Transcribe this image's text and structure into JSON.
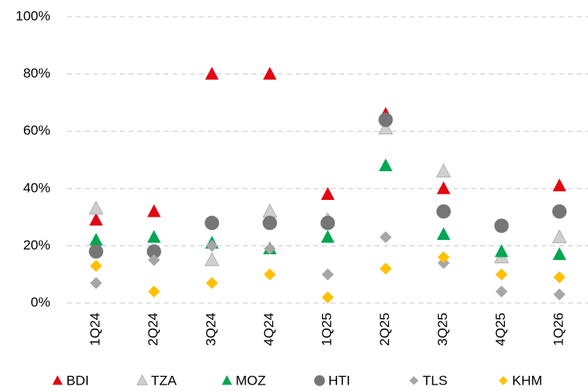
{
  "chart_data": {
    "type": "scatter",
    "categories": [
      "1Q24",
      "2Q24",
      "3Q24",
      "4Q24",
      "1Q25",
      "2Q25",
      "3Q25",
      "4Q25",
      "1Q26"
    ],
    "series": [
      {
        "name": "BDI",
        "color": "#e30613",
        "marker": "triangle",
        "values": [
          29,
          32,
          80,
          80,
          38,
          66,
          40,
          null,
          41
        ]
      },
      {
        "name": "TZA",
        "color": "#cfcfcf",
        "marker": "triangle",
        "values": [
          33,
          null,
          15,
          32,
          29,
          61,
          46,
          16,
          23
        ]
      },
      {
        "name": "MOZ",
        "color": "#00a651",
        "marker": "triangle",
        "values": [
          22,
          23,
          21,
          19,
          23,
          48,
          24,
          18,
          17
        ]
      },
      {
        "name": "HTI",
        "color": "#767676",
        "marker": "circle",
        "values": [
          18,
          18,
          28,
          28,
          28,
          64,
          32,
          27,
          32
        ]
      },
      {
        "name": "TLS",
        "color": "#a6a6a6",
        "marker": "diamond",
        "values": [
          7,
          15,
          20,
          19,
          10,
          23,
          14,
          4,
          3
        ]
      },
      {
        "name": "KHM",
        "color": "#ffc000",
        "marker": "diamond",
        "values": [
          13,
          4,
          7,
          10,
          2,
          12,
          16,
          10,
          9
        ]
      }
    ],
    "ylim": [
      0,
      100
    ],
    "yticks": [
      {
        "value": 0,
        "label": "0%"
      },
      {
        "value": 20,
        "label": "20%"
      },
      {
        "value": 40,
        "label": "40%"
      },
      {
        "value": 60,
        "label": "60%"
      },
      {
        "value": 80,
        "label": "80%"
      },
      {
        "value": 100,
        "label": "100%"
      }
    ],
    "grid": true,
    "legend": "bottom"
  }
}
